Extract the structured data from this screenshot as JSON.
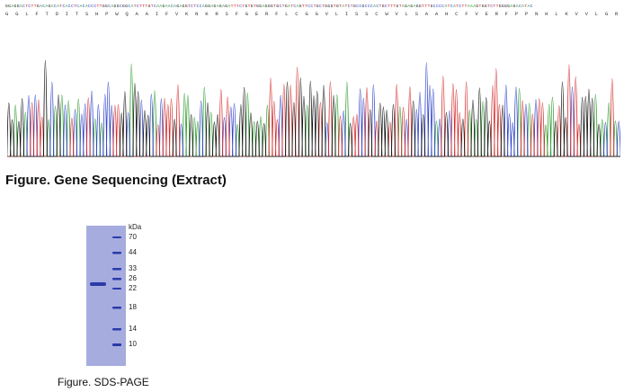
{
  "dna_sequence": "GGAGGACTCTTGACAGACATCACCTCACACCCTTGGCAGGCGGCATCTTTGTCAAGAACAGAGGTCTCCAGGAGAGAGATTTCTGTGTGGAGGGTGCTGATCAGTTCCTGCTGGGTGTATCTGCCGCCCACTGCTTTGTAGAGAGGTTTGCCCCATCATCTTAAAGTGGTCTTGGGGAGACATAC",
  "amino_acid_sequence": "G G L F T D I T S H P W Q A A I F V K N K R S F G E R F L C G G V L I S S C W V L S A A H C F V E R F P P N H L K V V L G R T Y",
  "chromatogram_colors": {
    "A": "#2a9a2a",
    "C": "#2b3fc8",
    "G": "#111111",
    "T": "#d42a2a"
  },
  "gene_figure_caption": "Figure. Gene Sequencing (Extract)",
  "gel": {
    "unit_label": "kDa",
    "marker_sizes": [
      "70",
      "44",
      "33",
      "26",
      "22",
      "18",
      "14",
      "10"
    ],
    "sample_band_kda": 24,
    "lane_color": "#a7acdf",
    "band_color": "#2b3aa8"
  },
  "sds_figure_caption": "Figure. SDS-PAGE"
}
